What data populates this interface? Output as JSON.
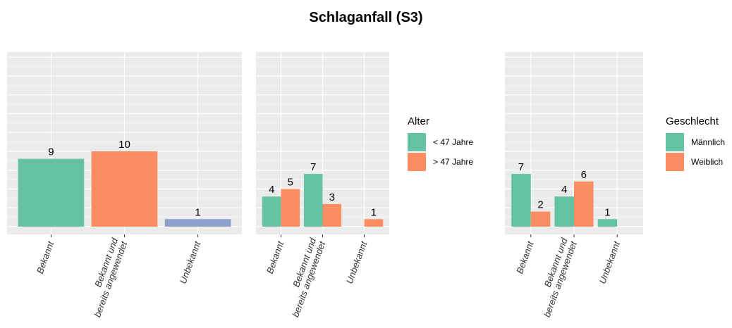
{
  "title": "Schlaganfall (S3)",
  "chart_data": [
    {
      "type": "bar",
      "categories": [
        "Bekannt",
        "Bekannt und\nbereits angewendet",
        "Unbekannt"
      ],
      "values": [
        9,
        10,
        1
      ],
      "bar_colors": [
        "#66c2a5",
        "#fc8d62",
        "#8da0cb"
      ],
      "ylim": [
        0,
        22
      ],
      "grid": true,
      "xlabel": "",
      "ylabel": ""
    },
    {
      "type": "bar",
      "categories": [
        "Bekannt",
        "Bekannt und\nbereits angewendet",
        "Unbekannt"
      ],
      "series": [
        {
          "name": "< 47 Jahre",
          "color": "#66c2a5",
          "values": [
            4,
            7,
            null
          ]
        },
        {
          "name": "> 47 Jahre",
          "color": "#fc8d62",
          "values": [
            5,
            3,
            1
          ]
        }
      ],
      "legend": {
        "title": "Alter",
        "placement": "right"
      },
      "ylim": [
        0,
        22
      ],
      "grid": true,
      "xlabel": "",
      "ylabel": ""
    },
    {
      "type": "bar",
      "categories": [
        "Bekannt",
        "Bekannt und\nbereits angewendet",
        "Unbekannt"
      ],
      "series": [
        {
          "name": "Männlich",
          "color": "#66c2a5",
          "values": [
            7,
            4,
            1
          ]
        },
        {
          "name": "Weiblich",
          "color": "#fc8d62",
          "values": [
            2,
            6,
            null
          ]
        }
      ],
      "legend": {
        "title": "Geschlecht",
        "placement": "right"
      },
      "ylim": [
        0,
        22
      ],
      "grid": true,
      "xlabel": "",
      "ylabel": ""
    }
  ]
}
